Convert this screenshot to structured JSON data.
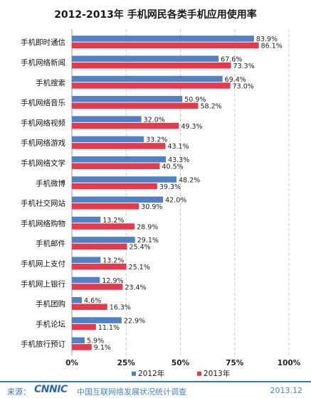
{
  "chart_data": {
    "type": "bar",
    "orientation": "horizontal",
    "title": "2012-2013年 手机网民各类手机应用使用率",
    "categories": [
      "手机即时通信",
      "手机网络新闻",
      "手机搜索",
      "手机网络音乐",
      "手机网络视频",
      "手机网络游戏",
      "手机网络文学",
      "手机微博",
      "手机社交网站",
      "手机网络购物",
      "手机邮件",
      "手机网上支付",
      "手机网上银行",
      "手机团购",
      "手机论坛",
      "手机旅行预订"
    ],
    "series": [
      {
        "name": "2012年",
        "color": "#4f81c7",
        "values": [
          83.9,
          67.6,
          69.4,
          50.9,
          32.0,
          33.2,
          43.3,
          48.2,
          42.0,
          13.2,
          29.1,
          13.2,
          12.9,
          4.6,
          22.9,
          5.9
        ],
        "labels": [
          "83.9%",
          "67.6%",
          "69.4%",
          "50.9%",
          "32.0%",
          "33.2%",
          "43.3%",
          "48.2%",
          "42.0%",
          "13.2%",
          "29.1%",
          "13.2%",
          "12.9%",
          "4.6%",
          "22.9%",
          "5.9%"
        ]
      },
      {
        "name": "2013年",
        "color": "#e8394a",
        "values": [
          86.1,
          73.3,
          73.0,
          58.2,
          49.3,
          43.1,
          40.5,
          39.3,
          30.9,
          28.9,
          25.4,
          25.1,
          23.4,
          16.3,
          11.1,
          9.1
        ],
        "labels": [
          "86.1%",
          "73.3%",
          "73.0%",
          "58.2%",
          "49.3%",
          "43.1%",
          "40.5%",
          "39.3%",
          "30.9%",
          "28.9%",
          "25.4%",
          "25.1%",
          "23.4%",
          "16.3%",
          "11.1%",
          "9.1%"
        ]
      }
    ],
    "xlim": [
      0,
      100
    ],
    "xticks": [
      0,
      25,
      50,
      75,
      100
    ],
    "xtick_labels": [
      "0%",
      "25%",
      "50%",
      "75%",
      "100%"
    ],
    "grid": "vertical dashed",
    "legend_position": "bottom"
  },
  "footer": {
    "source_label": "来源：",
    "logo_text": "CNNIC",
    "org_text": "中国互联网络发展状况统计调查",
    "date": "2013.12"
  },
  "watermark_text": "CNNIC"
}
